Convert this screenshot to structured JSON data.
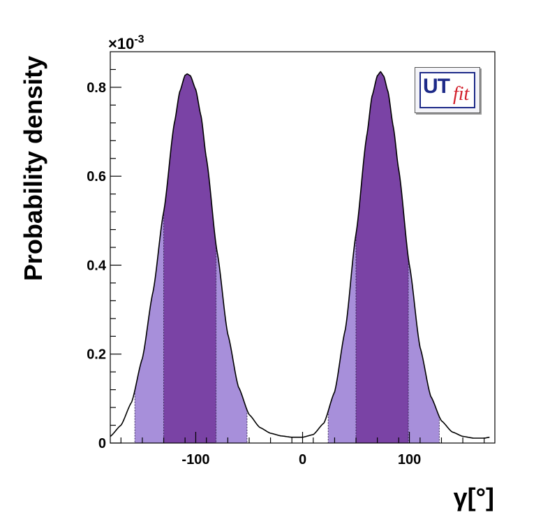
{
  "colors": {
    "inner_band": "#7a43a5",
    "outer_band": "#a78fda",
    "curve": "#000000",
    "frame": "#000000"
  },
  "logo": {
    "ut": "UT",
    "fit": "fit"
  },
  "chart_data": {
    "type": "area",
    "xlabel": "γ[°]",
    "ylabel": "Probability density",
    "y_exponent_label": "×10",
    "y_exponent_power": "-3",
    "xlim": [
      -180,
      180
    ],
    "ylim": [
      0,
      0.88
    ],
    "x_ticks": [
      -100,
      0,
      100
    ],
    "x_tick_labels": [
      "-100",
      "0",
      "100"
    ],
    "y_ticks": [
      0,
      0.2,
      0.4,
      0.6,
      0.8
    ],
    "y_tick_labels": [
      "0",
      "0.2",
      "0.4",
      "0.6",
      "0.8"
    ],
    "peaks": [
      {
        "mode": -108,
        "peak_density": 0.83,
        "inner_interval": [
          -130,
          -81
        ],
        "outer_interval": [
          -157,
          -52
        ]
      },
      {
        "mode": 73,
        "peak_density": 0.835,
        "inner_interval": [
          50,
          99
        ],
        "outer_interval": [
          24,
          128
        ]
      }
    ],
    "curve": {
      "x": [
        -180,
        -170,
        -160,
        -150,
        -140,
        -130,
        -120,
        -115,
        -110,
        -108,
        -105,
        -100,
        -95,
        -90,
        -80,
        -70,
        -60,
        -50,
        -40,
        -30,
        -20,
        -10,
        0,
        10,
        20,
        30,
        40,
        50,
        60,
        65,
        70,
        73,
        76,
        80,
        85,
        90,
        100,
        110,
        120,
        130,
        140,
        150,
        160,
        170,
        175
      ],
      "y": [
        0.015,
        0.04,
        0.092,
        0.19,
        0.34,
        0.52,
        0.72,
        0.79,
        0.827,
        0.83,
        0.826,
        0.795,
        0.735,
        0.64,
        0.43,
        0.245,
        0.126,
        0.064,
        0.035,
        0.022,
        0.016,
        0.013,
        0.013,
        0.019,
        0.045,
        0.115,
        0.255,
        0.47,
        0.69,
        0.78,
        0.826,
        0.835,
        0.825,
        0.79,
        0.71,
        0.615,
        0.4,
        0.215,
        0.105,
        0.05,
        0.025,
        0.015,
        0.011,
        0.011,
        0.013
      ]
    }
  }
}
